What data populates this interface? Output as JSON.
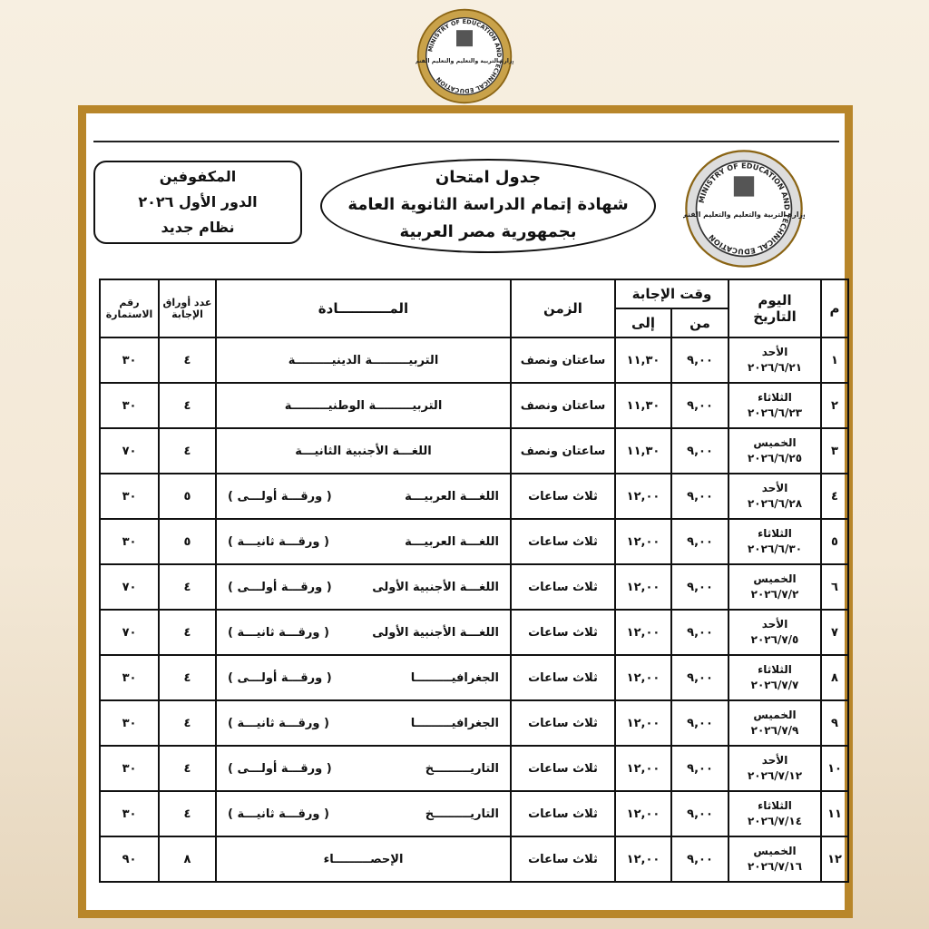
{
  "logo": {
    "en": "MINISTRY OF EDUCATION AND TECHNICAL EDUCATION",
    "ar": "وزارة التربية والتعليم والتعليم الفني"
  },
  "header": {
    "left": [
      "المكفوفين",
      "الدور الأول ٢٠٢٦",
      "نظام جديد"
    ],
    "center": [
      "جدول امتحان",
      "شهادة إتمام الدراسة الثانوية العامة",
      "بجمهورية مصر العربية"
    ]
  },
  "table": {
    "head": {
      "num": "م",
      "day": "اليوم",
      "date": "التاريخ",
      "time": "وقت الإجابة",
      "from": "من",
      "to": "إلى",
      "duration": "الزمن",
      "subject": "المـــــــــــادة",
      "sheets": "عدد أوراق الإجابة",
      "form": "رقم الاستمارة"
    },
    "rows": [
      {
        "num": "١",
        "day": "الأحد",
        "date": "٢٠٢٦/٦/٢١",
        "from": "٩,٠٠",
        "to": "١١,٣٠",
        "duration": "ساعتان ونصف",
        "subject": "التربيـــــــــة الدينيـــــــــة",
        "paper": "",
        "sheets": "٤",
        "form": "٣٠"
      },
      {
        "num": "٢",
        "day": "الثلاثاء",
        "date": "٢٠٢٦/٦/٢٣",
        "from": "٩,٠٠",
        "to": "١١,٣٠",
        "duration": "ساعتان ونصف",
        "subject": "التربيـــــــــة الوطنيـــــــــة",
        "paper": "",
        "sheets": "٤",
        "form": "٣٠"
      },
      {
        "num": "٣",
        "day": "الخميس",
        "date": "٢٠٢٦/٦/٢٥",
        "from": "٩,٠٠",
        "to": "١١,٣٠",
        "duration": "ساعتان ونصف",
        "subject": "اللغـــة الأجنبية الثانيـــة",
        "paper": "",
        "sheets": "٤",
        "form": "٧٠"
      },
      {
        "num": "٤",
        "day": "الأحد",
        "date": "٢٠٢٦/٦/٢٨",
        "from": "٩,٠٠",
        "to": "١٢,٠٠",
        "duration": "ثلاث ساعات",
        "subject": "اللغـــة العربيـــة",
        "paper": "( ورقـــة أولـــى )",
        "sheets": "٥",
        "form": "٣٠"
      },
      {
        "num": "٥",
        "day": "الثلاثاء",
        "date": "٢٠٢٦/٦/٣٠",
        "from": "٩,٠٠",
        "to": "١٢,٠٠",
        "duration": "ثلاث ساعات",
        "subject": "اللغـــة العربيـــة",
        "paper": "( ورقـــة ثانيـــة )",
        "sheets": "٥",
        "form": "٣٠"
      },
      {
        "num": "٦",
        "day": "الخميس",
        "date": "٢٠٢٦/٧/٢",
        "from": "٩,٠٠",
        "to": "١٢,٠٠",
        "duration": "ثلاث ساعات",
        "subject": "اللغـــة الأجنبية الأولى",
        "paper": "( ورقـــة أولـــى )",
        "sheets": "٤",
        "form": "٧٠"
      },
      {
        "num": "٧",
        "day": "الأحد",
        "date": "٢٠٢٦/٧/٥",
        "from": "٩,٠٠",
        "to": "١٢,٠٠",
        "duration": "ثلاث ساعات",
        "subject": "اللغـــة الأجنبية الأولى",
        "paper": "( ورقـــة ثانيـــة )",
        "sheets": "٤",
        "form": "٧٠"
      },
      {
        "num": "٨",
        "day": "الثلاثاء",
        "date": "٢٠٢٦/٧/٧",
        "from": "٩,٠٠",
        "to": "١٢,٠٠",
        "duration": "ثلاث ساعات",
        "subject": "الجغرافيـــــــــا",
        "paper": "( ورقـــة أولـــى )",
        "sheets": "٤",
        "form": "٣٠"
      },
      {
        "num": "٩",
        "day": "الخميس",
        "date": "٢٠٢٦/٧/٩",
        "from": "٩,٠٠",
        "to": "١٢,٠٠",
        "duration": "ثلاث ساعات",
        "subject": "الجغرافيـــــــــا",
        "paper": "( ورقـــة ثانيـــة )",
        "sheets": "٤",
        "form": "٣٠"
      },
      {
        "num": "١٠",
        "day": "الأحد",
        "date": "٢٠٢٦/٧/١٢",
        "from": "٩,٠٠",
        "to": "١٢,٠٠",
        "duration": "ثلاث ساعات",
        "subject": "التاريـــــــــخ",
        "paper": "( ورقـــة أولـــى )",
        "sheets": "٤",
        "form": "٣٠"
      },
      {
        "num": "١١",
        "day": "الثلاثاء",
        "date": "٢٠٢٦/٧/١٤",
        "from": "٩,٠٠",
        "to": "١٢,٠٠",
        "duration": "ثلاث ساعات",
        "subject": "التاريـــــــــخ",
        "paper": "( ورقـــة ثانيـــة )",
        "sheets": "٤",
        "form": "٣٠"
      },
      {
        "num": "١٢",
        "day": "الخميس",
        "date": "٢٠٢٦/٧/١٦",
        "from": "٩,٠٠",
        "to": "١٢,٠٠",
        "duration": "ثلاث ساعات",
        "subject": "الإحصـــــــــاء",
        "paper": "",
        "sheets": "٨",
        "form": "٩٠"
      }
    ]
  }
}
